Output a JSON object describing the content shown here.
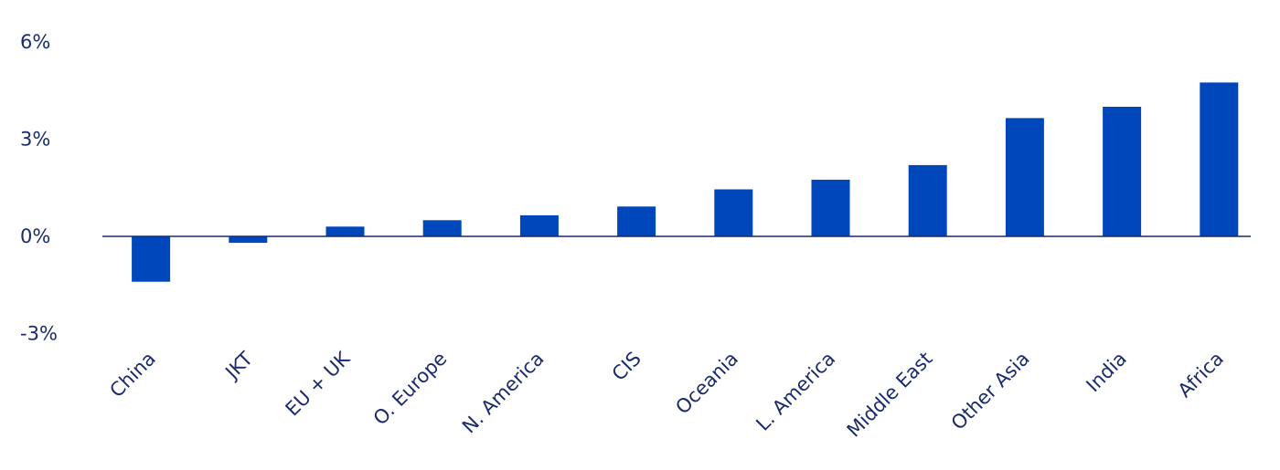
{
  "colors": {
    "bar": "#0047bb",
    "text": "#1a2a6c",
    "axis": "#1a2a6c"
  },
  "chart_data": {
    "type": "bar",
    "title": "",
    "xlabel": "",
    "ylabel": "",
    "ylim": [
      -3,
      6
    ],
    "yticks": [
      6,
      3,
      0,
      -3
    ],
    "ytick_labels": [
      "6%",
      "3%",
      "0%",
      "-3%"
    ],
    "grid": false,
    "categories": [
      "China",
      "JKT",
      "EU + UK",
      "O. Europe",
      "N. America",
      "CIS",
      "Oceania",
      "L. America",
      "Middle East",
      "Other Asia",
      "India",
      "Africa"
    ],
    "values": [
      -1.4,
      -0.2,
      0.3,
      0.5,
      0.65,
      0.92,
      1.45,
      1.75,
      2.2,
      3.65,
      4.0,
      4.75
    ]
  }
}
